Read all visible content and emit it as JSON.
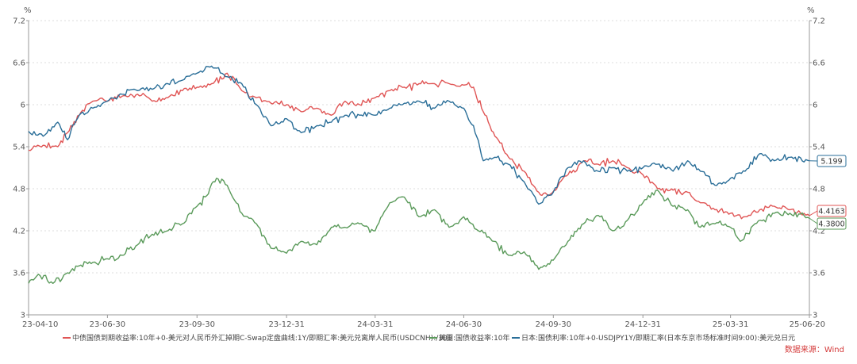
{
  "chart_data": {
    "type": "line",
    "y_unit_left": "%",
    "y_unit_right": "%",
    "ylim": [
      3,
      7.2
    ],
    "y_ticks": [
      3,
      3.6,
      4.2,
      4.8,
      5.4,
      6,
      6.6,
      7.2
    ],
    "y_tick_labels": [
      "3",
      "3.6",
      "4.2",
      "4.8",
      "5.4",
      "6",
      "6.6",
      "7.2"
    ],
    "x_range": [
      "2023-04-10",
      "2025-06-20"
    ],
    "x_ticks": [
      "2023-04-10",
      "2023-06-30",
      "2023-09-30",
      "2023-12-31",
      "2024-03-31",
      "2024-06-30",
      "2024-09-30",
      "2024-12-31",
      "2025-03-31",
      "2025-06-20"
    ],
    "x_tick_labels": [
      "23-04-10",
      "23-06-30",
      "23-09-30",
      "23-12-31",
      "24-03-31",
      "24-06-30",
      "24-09-30",
      "24-12-31",
      "25-03-31",
      "25-06-20"
    ],
    "grid": true,
    "legend_position": "bottom",
    "source": "数据来源：Wind",
    "series": [
      {
        "name": "中债国债到期收益率:10年+0-美元对人民币外汇掉期C-Swap定盘曲线:1Y/即期汇率:美元兑离岸人民币(USDCNH):/100",
        "color": "#e05555",
        "end_label": "4.4163",
        "points": [
          [
            "2023-04-10",
            5.35
          ],
          [
            "2023-04-25",
            5.42
          ],
          [
            "2023-05-10",
            5.4
          ],
          [
            "2023-05-20",
            5.6
          ],
          [
            "2023-06-01",
            5.85
          ],
          [
            "2023-06-15",
            6.05
          ],
          [
            "2023-06-30",
            6.05
          ],
          [
            "2023-07-15",
            6.12
          ],
          [
            "2023-07-31",
            6.15
          ],
          [
            "2023-08-15",
            6.05
          ],
          [
            "2023-08-31",
            6.1
          ],
          [
            "2023-09-15",
            6.2
          ],
          [
            "2023-09-30",
            6.25
          ],
          [
            "2023-10-15",
            6.3
          ],
          [
            "2023-10-31",
            6.45
          ],
          [
            "2023-11-15",
            6.2
          ],
          [
            "2023-11-30",
            6.1
          ],
          [
            "2023-12-15",
            6.02
          ],
          [
            "2023-12-31",
            6.0
          ],
          [
            "2024-01-15",
            5.9
          ],
          [
            "2024-01-31",
            5.95
          ],
          [
            "2024-02-15",
            5.85
          ],
          [
            "2024-02-29",
            6.05
          ],
          [
            "2024-03-15",
            6.0
          ],
          [
            "2024-03-31",
            6.1
          ],
          [
            "2024-04-15",
            6.2
          ],
          [
            "2024-04-30",
            6.25
          ],
          [
            "2024-05-15",
            6.3
          ],
          [
            "2024-05-31",
            6.3
          ],
          [
            "2024-06-15",
            6.3
          ],
          [
            "2024-06-30",
            6.28
          ],
          [
            "2024-07-10",
            6.25
          ],
          [
            "2024-07-20",
            5.9
          ],
          [
            "2024-08-01",
            5.55
          ],
          [
            "2024-08-15",
            5.25
          ],
          [
            "2024-08-31",
            5.05
          ],
          [
            "2024-09-15",
            4.75
          ],
          [
            "2024-09-25",
            4.7
          ],
          [
            "2024-10-10",
            4.95
          ],
          [
            "2024-10-31",
            5.2
          ],
          [
            "2024-11-15",
            5.15
          ],
          [
            "2024-11-30",
            5.2
          ],
          [
            "2024-12-15",
            5.1
          ],
          [
            "2024-12-31",
            5.0
          ],
          [
            "2025-01-15",
            4.8
          ],
          [
            "2025-01-31",
            4.78
          ],
          [
            "2025-02-15",
            4.75
          ],
          [
            "2025-02-28",
            4.6
          ],
          [
            "2025-03-15",
            4.5
          ],
          [
            "2025-03-31",
            4.45
          ],
          [
            "2025-04-15",
            4.4
          ],
          [
            "2025-04-30",
            4.5
          ],
          [
            "2025-05-15",
            4.55
          ],
          [
            "2025-05-31",
            4.5
          ],
          [
            "2025-06-20",
            4.4163
          ]
        ]
      },
      {
        "name": "美国:国债收益率:10年",
        "color": "#5a9a5a",
        "end_label": "4.3800",
        "points": [
          [
            "2023-04-10",
            3.45
          ],
          [
            "2023-04-20",
            3.58
          ],
          [
            "2023-05-05",
            3.45
          ],
          [
            "2023-05-20",
            3.6
          ],
          [
            "2023-06-01",
            3.7
          ],
          [
            "2023-06-15",
            3.75
          ],
          [
            "2023-06-30",
            3.8
          ],
          [
            "2023-07-15",
            3.85
          ],
          [
            "2023-07-31",
            4.0
          ],
          [
            "2023-08-15",
            4.15
          ],
          [
            "2023-08-31",
            4.2
          ],
          [
            "2023-09-15",
            4.3
          ],
          [
            "2023-09-30",
            4.55
          ],
          [
            "2023-10-10",
            4.7
          ],
          [
            "2023-10-20",
            4.95
          ],
          [
            "2023-10-31",
            4.85
          ],
          [
            "2023-11-15",
            4.45
          ],
          [
            "2023-11-30",
            4.3
          ],
          [
            "2023-12-15",
            3.95
          ],
          [
            "2023-12-31",
            3.88
          ],
          [
            "2024-01-15",
            4.05
          ],
          [
            "2024-01-31",
            4.0
          ],
          [
            "2024-02-15",
            4.25
          ],
          [
            "2024-02-29",
            4.25
          ],
          [
            "2024-03-15",
            4.3
          ],
          [
            "2024-03-31",
            4.2
          ],
          [
            "2024-04-15",
            4.6
          ],
          [
            "2024-04-30",
            4.68
          ],
          [
            "2024-05-15",
            4.4
          ],
          [
            "2024-05-31",
            4.5
          ],
          [
            "2024-06-15",
            4.25
          ],
          [
            "2024-06-30",
            4.4
          ],
          [
            "2024-07-15",
            4.2
          ],
          [
            "2024-07-31",
            4.05
          ],
          [
            "2024-08-15",
            3.85
          ],
          [
            "2024-08-31",
            3.9
          ],
          [
            "2024-09-15",
            3.65
          ],
          [
            "2024-09-30",
            3.78
          ],
          [
            "2024-10-15",
            4.05
          ],
          [
            "2024-10-31",
            4.3
          ],
          [
            "2024-11-15",
            4.42
          ],
          [
            "2024-11-30",
            4.2
          ],
          [
            "2024-12-15",
            4.35
          ],
          [
            "2024-12-31",
            4.6
          ],
          [
            "2025-01-15",
            4.78
          ],
          [
            "2025-01-31",
            4.55
          ],
          [
            "2025-02-15",
            4.5
          ],
          [
            "2025-02-28",
            4.25
          ],
          [
            "2025-03-15",
            4.3
          ],
          [
            "2025-03-31",
            4.25
          ],
          [
            "2025-04-10",
            4.05
          ],
          [
            "2025-04-25",
            4.3
          ],
          [
            "2025-05-15",
            4.45
          ],
          [
            "2025-05-31",
            4.45
          ],
          [
            "2025-06-20",
            4.38
          ]
        ]
      },
      {
        "name": "日本:国债利率:10年+0-USDJPY1Y/即期汇率(日本东京市场标准时间9:00):美元兑日元",
        "color": "#2a6e98",
        "end_label": "5.199",
        "points": [
          [
            "2023-04-10",
            5.62
          ],
          [
            "2023-04-25",
            5.55
          ],
          [
            "2023-05-10",
            5.75
          ],
          [
            "2023-05-20",
            5.5
          ],
          [
            "2023-06-01",
            5.85
          ],
          [
            "2023-06-15",
            5.95
          ],
          [
            "2023-06-30",
            6.05
          ],
          [
            "2023-07-15",
            6.15
          ],
          [
            "2023-07-31",
            6.2
          ],
          [
            "2023-08-15",
            6.22
          ],
          [
            "2023-08-31",
            6.3
          ],
          [
            "2023-09-15",
            6.35
          ],
          [
            "2023-09-30",
            6.45
          ],
          [
            "2023-10-15",
            6.55
          ],
          [
            "2023-10-31",
            6.4
          ],
          [
            "2023-11-15",
            6.3
          ],
          [
            "2023-11-30",
            6.0
          ],
          [
            "2023-12-15",
            5.7
          ],
          [
            "2023-12-31",
            5.8
          ],
          [
            "2024-01-15",
            5.6
          ],
          [
            "2024-01-31",
            5.7
          ],
          [
            "2024-02-15",
            5.75
          ],
          [
            "2024-02-29",
            5.85
          ],
          [
            "2024-03-15",
            5.85
          ],
          [
            "2024-03-31",
            5.85
          ],
          [
            "2024-04-15",
            5.95
          ],
          [
            "2024-04-30",
            6.02
          ],
          [
            "2024-05-15",
            6.05
          ],
          [
            "2024-05-31",
            5.95
          ],
          [
            "2024-06-15",
            6.05
          ],
          [
            "2024-06-30",
            5.95
          ],
          [
            "2024-07-10",
            5.7
          ],
          [
            "2024-07-20",
            5.2
          ],
          [
            "2024-08-01",
            5.25
          ],
          [
            "2024-08-15",
            5.15
          ],
          [
            "2024-08-31",
            4.9
          ],
          [
            "2024-09-15",
            4.58
          ],
          [
            "2024-09-30",
            4.75
          ],
          [
            "2024-10-15",
            5.1
          ],
          [
            "2024-10-31",
            5.2
          ],
          [
            "2024-11-15",
            5.05
          ],
          [
            "2024-11-30",
            5.1
          ],
          [
            "2024-12-15",
            5.05
          ],
          [
            "2024-12-31",
            5.1
          ],
          [
            "2025-01-15",
            5.15
          ],
          [
            "2025-01-31",
            5.05
          ],
          [
            "2025-02-15",
            5.2
          ],
          [
            "2025-02-28",
            5.05
          ],
          [
            "2025-03-15",
            4.85
          ],
          [
            "2025-03-31",
            4.95
          ],
          [
            "2025-04-15",
            5.05
          ],
          [
            "2025-04-30",
            5.3
          ],
          [
            "2025-05-15",
            5.2
          ],
          [
            "2025-05-31",
            5.25
          ],
          [
            "2025-06-20",
            5.199
          ]
        ]
      }
    ]
  }
}
